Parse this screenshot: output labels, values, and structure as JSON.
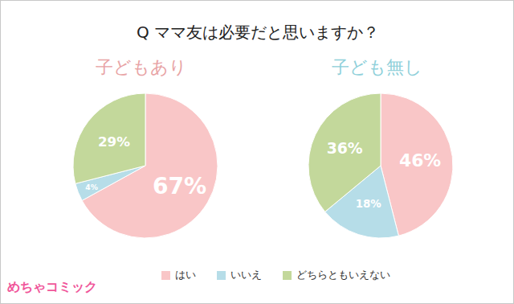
{
  "title": "Q ママ友は必要だと思いますか？",
  "annotations": [
    "めちゃコミック"
  ],
  "chart_data": [
    {
      "type": "pie",
      "title": "子どもあり",
      "categories": [
        "はい",
        "いいえ",
        "どちらともいえない"
      ],
      "values": [
        67,
        4,
        29
      ],
      "value_labels": [
        "67%",
        "4%",
        "29%"
      ],
      "colors": [
        "#f9c6c7",
        "#b6dde8",
        "#c3d89b"
      ],
      "data_labels": true,
      "legend": "bottom"
    },
    {
      "type": "pie",
      "title": "子ども無し",
      "categories": [
        "はい",
        "いいえ",
        "どちらともいえない"
      ],
      "values": [
        46,
        18,
        36
      ],
      "value_labels": [
        "46%",
        "18%",
        "36%"
      ],
      "colors": [
        "#f9c6c7",
        "#b6dde8",
        "#c3d89b"
      ],
      "data_labels": true
    }
  ]
}
